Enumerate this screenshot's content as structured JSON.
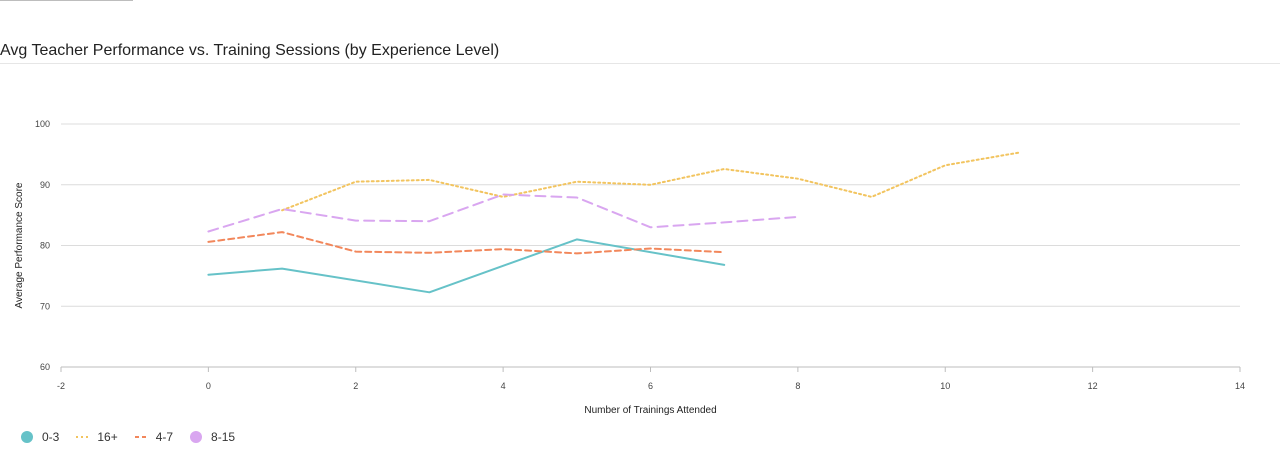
{
  "header": {
    "title": "Avg Teacher Performance vs. Training Sessions (by Experience Level)"
  },
  "chart_data": {
    "type": "line",
    "title": "Avg Teacher Performance vs. Training Sessions (by Experience Level)",
    "xlabel": "Number of Trainings Attended",
    "ylabel": "Average Performance Score",
    "xlim": [
      -2,
      14
    ],
    "ylim": [
      60,
      100
    ],
    "x_ticks": [
      "-2",
      "0",
      "2",
      "4",
      "6",
      "8",
      "10",
      "12",
      "14"
    ],
    "y_ticks": [
      "60",
      "70",
      "80",
      "90",
      "100"
    ],
    "grid": "horizontal",
    "legend_position": "bottom-left",
    "series": [
      {
        "name": "0-3",
        "color": "#66c2c8",
        "dash": "solid",
        "legend_icon": "circle-icon",
        "x": [
          0,
          1,
          3,
          5,
          7
        ],
        "y": [
          75.2,
          76.2,
          72.3,
          81.0,
          76.8
        ]
      },
      {
        "name": "16+",
        "color": "#f2c45f",
        "dash": "dotted",
        "legend_icon": "dotted-line-icon",
        "x": [
          1,
          2,
          3,
          4,
          5,
          6,
          7,
          8,
          9,
          10,
          11
        ],
        "y": [
          85.8,
          90.5,
          90.8,
          88.0,
          90.5,
          90.0,
          92.6,
          91.0,
          88.0,
          93.2,
          95.3
        ]
      },
      {
        "name": "4-7",
        "color": "#f2875b",
        "dash": "dashed",
        "legend_icon": "dashed-line-icon",
        "x": [
          0,
          1,
          2,
          3,
          4,
          5,
          6,
          7
        ],
        "y": [
          80.6,
          82.2,
          79.0,
          78.8,
          79.4,
          78.7,
          79.5,
          78.9
        ]
      },
      {
        "name": "8-15",
        "color": "#d9a6f0",
        "dash": "long-dashed",
        "legend_icon": "circle-icon",
        "x": [
          0,
          1,
          2,
          3,
          4,
          5,
          6,
          7,
          8
        ],
        "y": [
          82.3,
          86.0,
          84.1,
          84.0,
          88.4,
          87.9,
          83.0,
          83.8,
          84.7
        ]
      }
    ]
  }
}
